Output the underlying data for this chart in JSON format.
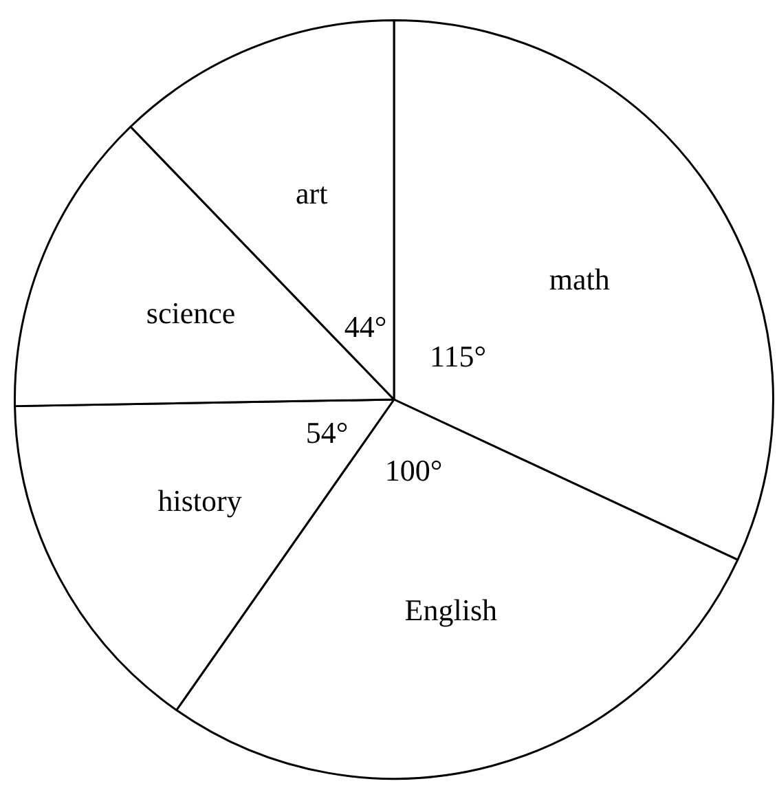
{
  "chart_data": {
    "type": "pie",
    "categories": [
      "math",
      "English",
      "history",
      "science",
      "art"
    ],
    "values": [
      115,
      100,
      54,
      47,
      44
    ],
    "value_labels": [
      "115°",
      "100°",
      "54°",
      null,
      "44°"
    ],
    "colors": [
      "#ffffff",
      "#ffffff",
      "#ffffff",
      "#ffffff",
      "#ffffff"
    ],
    "legend": false
  }
}
